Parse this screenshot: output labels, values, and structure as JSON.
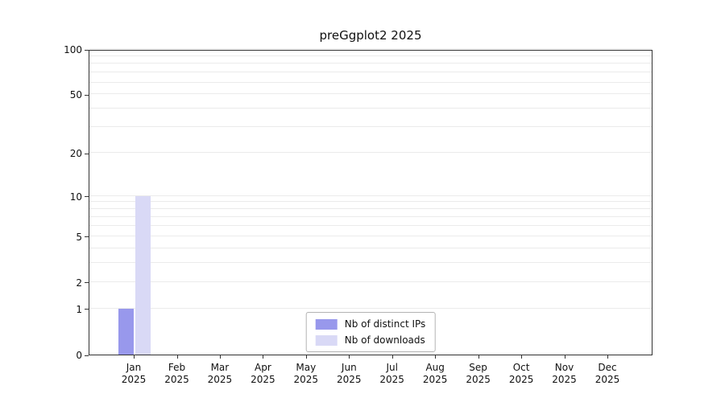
{
  "title": "preGgplot2 2025",
  "chart_data": {
    "type": "bar",
    "title": "preGgplot2 2025",
    "categories": [
      "Jan",
      "Feb",
      "Mar",
      "Apr",
      "May",
      "Jun",
      "Jul",
      "Aug",
      "Sep",
      "Oct",
      "Nov",
      "Dec"
    ],
    "year": "2025",
    "series": [
      {
        "name": "Nb of distinct IPs",
        "color": "#9898ec",
        "values": [
          1,
          0,
          0,
          0,
          0,
          0,
          0,
          0,
          0,
          0,
          0,
          0
        ]
      },
      {
        "name": "Nb of downloads",
        "color": "#d9d9f6",
        "values": [
          10,
          0,
          0,
          0,
          0,
          0,
          0,
          0,
          0,
          0,
          0,
          0
        ]
      }
    ],
    "xlabel": "",
    "ylabel": "",
    "y_ticks": [
      0,
      1,
      2,
      5,
      10,
      20,
      50,
      100
    ],
    "y_max": 100,
    "y_scale": "log1p",
    "ylim": [
      0,
      100
    ],
    "gridlines": [
      1,
      2,
      3,
      4,
      5,
      6,
      7,
      8,
      9,
      10,
      20,
      30,
      40,
      50,
      60,
      70,
      80,
      90,
      100
    ],
    "grid": true,
    "legend_position": "bottom-center",
    "grid_color": "#ebebeb",
    "axis_color": "#333333",
    "background_color": "#ffffff"
  }
}
